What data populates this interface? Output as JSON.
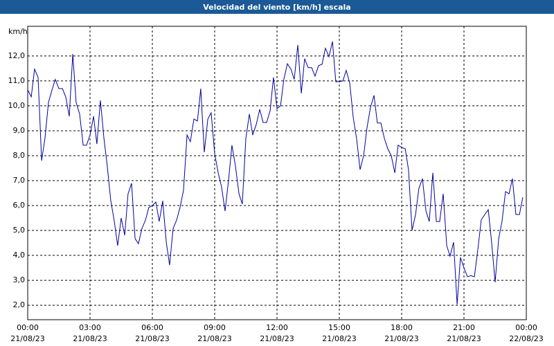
{
  "chart_data": {
    "type": "line",
    "title": "Velocidad del viento [km/h] escala",
    "ylabel": "km/h",
    "color": "#0000a0",
    "grid": true,
    "xlim": [
      0,
      24
    ],
    "ylim": [
      1.42,
      13.19
    ],
    "yticks": [
      {
        "value": 2,
        "label": "2,0"
      },
      {
        "value": 3,
        "label": "3,0"
      },
      {
        "value": 4,
        "label": "4,0"
      },
      {
        "value": 5,
        "label": "5,0"
      },
      {
        "value": 6,
        "label": "6,0"
      },
      {
        "value": 7,
        "label": "7,0"
      },
      {
        "value": 8,
        "label": "8,0"
      },
      {
        "value": 9,
        "label": "9,0"
      },
      {
        "value": 10,
        "label": "10,0"
      },
      {
        "value": 11,
        "label": "11,0"
      },
      {
        "value": 12,
        "label": "12,0"
      }
    ],
    "xticks": [
      {
        "value": 0,
        "label": "00:00"
      },
      {
        "value": 3,
        "label": "03:00"
      },
      {
        "value": 6,
        "label": "06:00"
      },
      {
        "value": 9,
        "label": "09:00"
      },
      {
        "value": 12,
        "label": "12:00"
      },
      {
        "value": 15,
        "label": "15:00"
      },
      {
        "value": 18,
        "label": "18:00"
      },
      {
        "value": 21,
        "label": "21:00"
      },
      {
        "value": 24,
        "label": "00:00"
      }
    ],
    "xtick_dates": [
      "21/08/23",
      "21/08/23",
      "21/08/23",
      "21/08/23",
      "21/08/23",
      "21/08/23",
      "21/08/23",
      "21/08/23",
      "22/08/23"
    ],
    "x": [
      0,
      0.17,
      0.33,
      0.5,
      0.67,
      0.83,
      1,
      1.17,
      1.33,
      1.5,
      1.67,
      1.83,
      2,
      2.17,
      2.33,
      2.5,
      2.67,
      2.83,
      3,
      3.17,
      3.33,
      3.5,
      3.67,
      3.83,
      4,
      4.17,
      4.33,
      4.5,
      4.67,
      4.83,
      5,
      5.17,
      5.33,
      5.5,
      5.67,
      5.83,
      6,
      6.17,
      6.33,
      6.5,
      6.67,
      6.83,
      7,
      7.17,
      7.33,
      7.5,
      7.67,
      7.83,
      8,
      8.17,
      8.33,
      8.5,
      8.67,
      8.83,
      9,
      9.17,
      9.33,
      9.5,
      9.67,
      9.83,
      10,
      10.17,
      10.33,
      10.5,
      10.67,
      10.83,
      11,
      11.17,
      11.33,
      11.5,
      11.67,
      11.83,
      12,
      12.17,
      12.33,
      12.5,
      12.67,
      12.83,
      13,
      13.17,
      13.33,
      13.5,
      13.67,
      13.83,
      14,
      14.17,
      14.33,
      14.5,
      14.67,
      14.83,
      15,
      15.17,
      15.33,
      15.5,
      15.67,
      15.83,
      16,
      16.17,
      16.33,
      16.5,
      16.67,
      16.83,
      17,
      17.17,
      17.33,
      17.5,
      17.67,
      17.83,
      18,
      18.17,
      18.33,
      18.5,
      18.67,
      18.83,
      19,
      19.17,
      19.33,
      19.5,
      19.67,
      19.83,
      20,
      20.17,
      20.33,
      20.5,
      20.67,
      20.83,
      21,
      21.17,
      21.33,
      21.5,
      21.67,
      21.83,
      22,
      22.17,
      22.33,
      22.5,
      22.67,
      22.83,
      23,
      23.17,
      23.33,
      23.5,
      23.67,
      23.83
    ],
    "values": [
      10.64,
      10.36,
      11.47,
      11.14,
      7.8,
      8.69,
      10.14,
      10.64,
      11.06,
      10.69,
      10.69,
      10.36,
      9.58,
      12.08,
      10.14,
      9.67,
      8.42,
      8.42,
      8.83,
      9.58,
      8.47,
      10.22,
      8.69,
      7.58,
      6.19,
      5.36,
      4.39,
      5.5,
      4.81,
      6.47,
      6.89,
      4.67,
      4.47,
      5.08,
      5.42,
      5.92,
      6.0,
      6.14,
      5.36,
      6.19,
      4.53,
      3.61,
      5.08,
      5.42,
      5.92,
      6.61,
      8.83,
      8.56,
      9.47,
      9.39,
      10.69,
      8.14,
      9.47,
      9.72,
      8.08,
      7.31,
      6.75,
      5.78,
      7.03,
      8.42,
      7.58,
      6.47,
      6.06,
      8.69,
      9.67,
      8.83,
      9.25,
      9.86,
      9.33,
      9.33,
      9.81,
      11.14,
      9.89,
      10.0,
      11.06,
      11.69,
      11.47,
      11.06,
      12.44,
      10.5,
      11.89,
      11.53,
      11.53,
      11.19,
      11.61,
      11.67,
      12.31,
      11.97,
      12.58,
      10.97,
      10.97,
      11.0,
      11.42,
      10.92,
      9.53,
      8.69,
      7.44,
      8.0,
      9.11,
      9.94,
      10.42,
      9.31,
      9.31,
      8.69,
      8.28,
      8.0,
      7.31,
      8.42,
      8.33,
      8.28,
      7.44,
      5.0,
      5.64,
      6.69,
      7.08,
      5.78,
      5.36,
      7.31,
      5.36,
      5.36,
      6.47,
      4.39,
      3.97,
      4.53,
      2.03,
      3.92,
      3.5,
      3.14,
      3.19,
      3.14,
      4.25,
      5.42,
      5.64,
      5.83,
      4.53,
      2.92,
      4.67,
      5.36,
      6.56,
      6.47,
      7.08,
      5.64,
      5.64,
      6.33
    ]
  }
}
